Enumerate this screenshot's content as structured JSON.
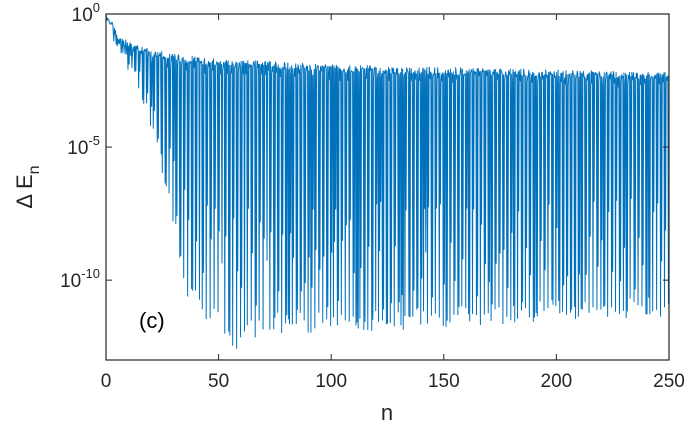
{
  "chart_data": {
    "type": "line",
    "panel_label": "(c)",
    "xlabel": "n",
    "ylabel": {
      "base": "Δ E",
      "subscript": "n"
    },
    "xlim": [
      0,
      250
    ],
    "ylim_exponent": [
      -13,
      0
    ],
    "yscale": "log",
    "grid": false,
    "box": true,
    "line_color": "#0072bd",
    "x_ticks": [
      {
        "value": 0,
        "label": "0"
      },
      {
        "value": 50,
        "label": "50"
      },
      {
        "value": 100,
        "label": "100"
      },
      {
        "value": 150,
        "label": "150"
      },
      {
        "value": 200,
        "label": "200"
      },
      {
        "value": 250,
        "label": "250"
      }
    ],
    "y_ticks": [
      {
        "exponent": 0,
        "base": "10",
        "exp": "0"
      },
      {
        "exponent": -5,
        "base": "10",
        "exp": "-5"
      },
      {
        "exponent": -10,
        "base": "10",
        "exp": "-10"
      }
    ],
    "envelope_upper_log10": [
      [
        0,
        0
      ],
      [
        1,
        -0.2
      ],
      [
        3,
        -0.3
      ],
      [
        5,
        -0.8
      ],
      [
        10,
        -1.0
      ],
      [
        15,
        -1.2
      ],
      [
        20,
        -1.3
      ],
      [
        30,
        -1.5
      ],
      [
        50,
        -1.7
      ],
      [
        80,
        -1.8
      ],
      [
        100,
        -1.9
      ],
      [
        150,
        -2.0
      ],
      [
        200,
        -2.1
      ],
      [
        250,
        -2.2
      ]
    ],
    "envelope_lower_log10": [
      [
        0,
        0
      ],
      [
        5,
        -1.5
      ],
      [
        10,
        -2.2
      ],
      [
        15,
        -3.0
      ],
      [
        18,
        -3.8
      ],
      [
        22,
        -5.0
      ],
      [
        25,
        -6.0
      ],
      [
        28,
        -7.0
      ],
      [
        31,
        -8.5
      ],
      [
        34,
        -10.5
      ],
      [
        38,
        -11.0
      ],
      [
        45,
        -11.5
      ],
      [
        58,
        -12.6
      ],
      [
        70,
        -12.0
      ],
      [
        100,
        -12.0
      ],
      [
        150,
        -11.8
      ],
      [
        200,
        -11.5
      ],
      [
        250,
        -11.4
      ]
    ]
  }
}
